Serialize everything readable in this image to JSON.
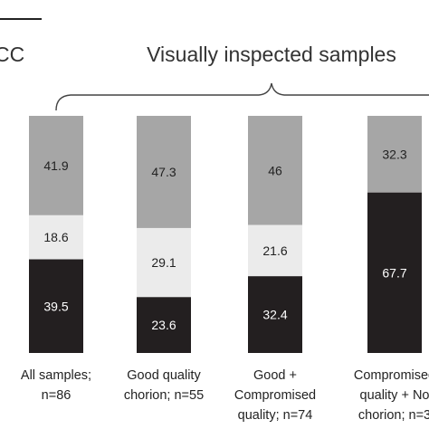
{
  "chart_data": {
    "type": "bar",
    "stacked": true,
    "orientation": "vertical",
    "unit": "percent",
    "categories": [
      [
        "All samples;",
        "n=86"
      ],
      [
        "Good quality",
        "chorion; n=55"
      ],
      [
        "Good +",
        "Compromised",
        "quality; n=74"
      ],
      [
        "Compromised",
        "quality + No",
        "chorion; n=3"
      ]
    ],
    "series": [
      {
        "values": [
          39.5,
          23.6,
          32.4,
          67.7
        ],
        "color": "#231f20",
        "label_color": "#ffffff"
      },
      {
        "values": [
          18.6,
          29.1,
          21.6,
          0
        ],
        "color": "#ebebeb",
        "label_color": "#222222"
      },
      {
        "values": [
          41.9,
          47.3,
          46,
          32.3
        ],
        "color": "#a6a6a6",
        "label_color": "#222222"
      }
    ],
    "value_labels": [
      [
        "39.5",
        "18.6",
        "41.9"
      ],
      [
        "23.6",
        "29.1",
        "47.3"
      ],
      [
        "32.4",
        "21.6",
        "46"
      ],
      [
        "67.7",
        "0",
        "32.3"
      ]
    ],
    "ylim": [
      0,
      100
    ],
    "grid": false,
    "legend": "none"
  },
  "annotations": {
    "left_header": "CC",
    "group_header": "Visually inspected samples"
  }
}
